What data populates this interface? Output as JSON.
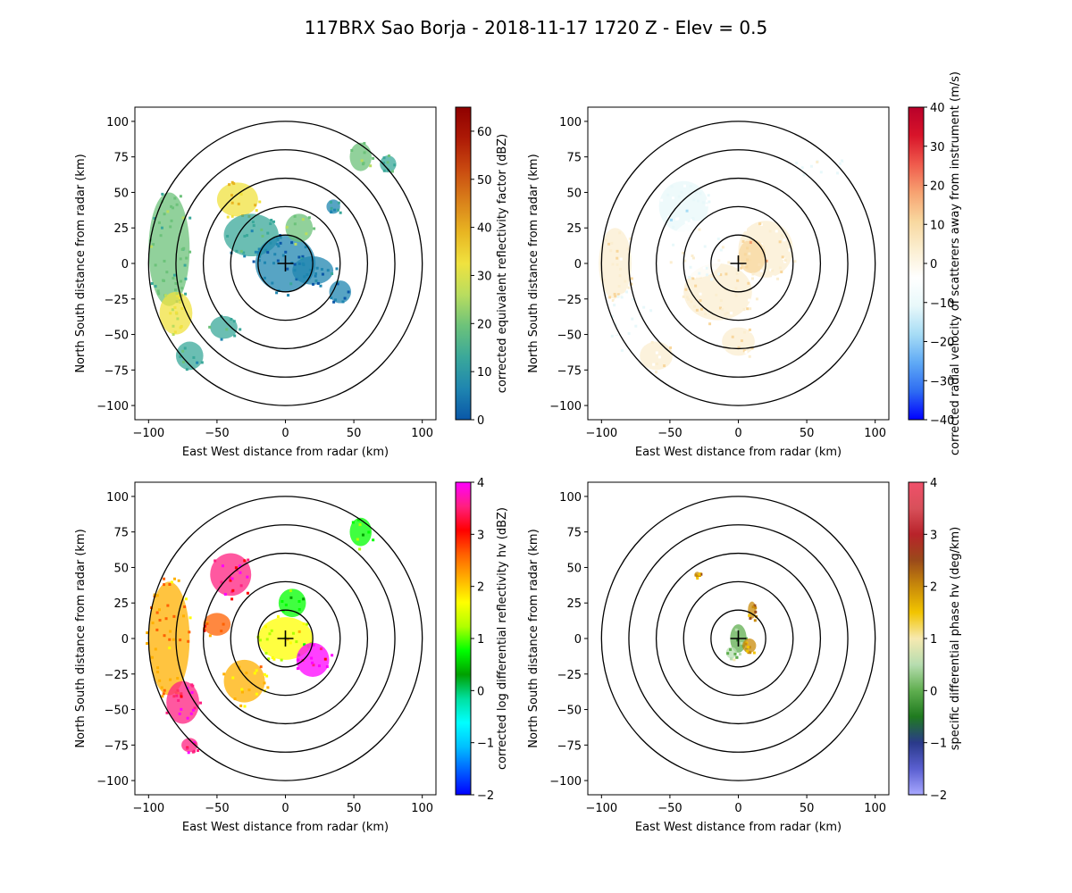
{
  "figure": {
    "title": "117BRX Sao Borja - 2018-11-17 1720 Z -  Elev = 0.5"
  },
  "chart_data": [
    {
      "type": "heatmap",
      "field": "reflectivity",
      "xlabel": "East West distance from radar (km)",
      "ylabel": "North South distance from radar (km)",
      "xlim": [
        -110,
        110
      ],
      "ylim": [
        -110,
        110
      ],
      "xticks": [
        -100,
        -50,
        0,
        50,
        100
      ],
      "yticks": [
        -100,
        -75,
        -50,
        -25,
        0,
        25,
        50,
        75,
        100
      ],
      "range_rings_km": [
        20,
        40,
        60,
        80,
        100
      ],
      "colorbar": {
        "label": "corrected equivalent reflectivity factor (dBZ)",
        "min": 0,
        "max": 65,
        "ticks": [
          0,
          10,
          20,
          30,
          40,
          50,
          60
        ],
        "colors": [
          "#0a57a8",
          "#1f86b0",
          "#3aa89a",
          "#6cc27a",
          "#b9dd5f",
          "#f0e23f",
          "#e8b522",
          "#d9801a",
          "#c94a10",
          "#ad1a06",
          "#8f0000"
        ]
      },
      "echoes": [
        {
          "x": -85,
          "y": 10,
          "rx": 15,
          "ry": 40,
          "value": 18
        },
        {
          "x": -80,
          "y": -35,
          "rx": 12,
          "ry": 15,
          "value": 30
        },
        {
          "x": -70,
          "y": -65,
          "rx": 10,
          "ry": 10,
          "value": 15
        },
        {
          "x": -35,
          "y": 45,
          "rx": 15,
          "ry": 12,
          "value": 35
        },
        {
          "x": -25,
          "y": 20,
          "rx": 20,
          "ry": 15,
          "value": 12
        },
        {
          "x": 0,
          "y": 0,
          "rx": 22,
          "ry": 20,
          "value": 5
        },
        {
          "x": 10,
          "y": 25,
          "rx": 10,
          "ry": 10,
          "value": 22
        },
        {
          "x": 20,
          "y": -5,
          "rx": 15,
          "ry": 10,
          "value": 8
        },
        {
          "x": 40,
          "y": -20,
          "rx": 8,
          "ry": 8,
          "value": 5
        },
        {
          "x": 55,
          "y": 75,
          "rx": 8,
          "ry": 10,
          "value": 20
        },
        {
          "x": 75,
          "y": 70,
          "rx": 6,
          "ry": 6,
          "value": 15
        },
        {
          "x": -45,
          "y": -45,
          "rx": 10,
          "ry": 8,
          "value": 12
        },
        {
          "x": 35,
          "y": 40,
          "rx": 5,
          "ry": 5,
          "value": 8
        }
      ]
    },
    {
      "type": "heatmap",
      "field": "velocity",
      "xlabel": "East West distance from radar (km)",
      "ylabel": "North South distance from radar (km)",
      "xlim": [
        -110,
        110
      ],
      "ylim": [
        -110,
        110
      ],
      "xticks": [
        -100,
        -50,
        0,
        50,
        100
      ],
      "yticks": [
        -100,
        -75,
        -50,
        -25,
        0,
        25,
        50,
        75,
        100
      ],
      "range_rings_km": [
        20,
        40,
        60,
        80,
        100
      ],
      "colorbar": {
        "label": "corrected radial velocity of scatterers away from instrument (m/s)",
        "min": -40,
        "max": 40,
        "ticks": [
          -40,
          -30,
          -20,
          -10,
          0,
          10,
          20,
          30,
          40
        ],
        "colors": [
          "#0000ff",
          "#2e6cf2",
          "#5fa9f5",
          "#a6dcf5",
          "#e8f8fa",
          "#ffffff",
          "#fbeed0",
          "#f8d79e",
          "#f7a271",
          "#ef5a4c",
          "#d8142a",
          "#b8002a"
        ]
      },
      "echoes": [
        {
          "x": -90,
          "y": 0,
          "rx": 12,
          "ry": 25,
          "value": 4
        },
        {
          "x": -80,
          "y": -40,
          "rx": 15,
          "ry": 20,
          "value": -7
        },
        {
          "x": -60,
          "y": -65,
          "rx": 12,
          "ry": 10,
          "value": 3
        },
        {
          "x": -40,
          "y": 40,
          "rx": 18,
          "ry": 18,
          "value": -8
        },
        {
          "x": -15,
          "y": -20,
          "rx": 25,
          "ry": 20,
          "value": 5
        },
        {
          "x": 20,
          "y": 10,
          "rx": 20,
          "ry": 20,
          "value": 4
        },
        {
          "x": -30,
          "y": 10,
          "rx": 20,
          "ry": 20,
          "value": -5
        },
        {
          "x": 55,
          "y": 70,
          "rx": 20,
          "ry": 12,
          "value": -6
        },
        {
          "x": 0,
          "y": -55,
          "rx": 12,
          "ry": 10,
          "value": 4
        },
        {
          "x": 10,
          "y": 5,
          "rx": 10,
          "ry": 12,
          "value": 8
        }
      ]
    },
    {
      "type": "heatmap",
      "field": "differential_reflectivity",
      "xlabel": "East West distance from radar (km)",
      "ylabel": "North South distance from radar (km)",
      "xlim": [
        -110,
        110
      ],
      "ylim": [
        -110,
        110
      ],
      "xticks": [
        -100,
        -50,
        0,
        50,
        100
      ],
      "yticks": [
        -100,
        -75,
        -50,
        -25,
        0,
        25,
        50,
        75,
        100
      ],
      "range_rings_km": [
        20,
        40,
        60,
        80,
        100
      ],
      "colorbar": {
        "label": "corrected log differential reflectivity hv (dBZ)",
        "min": -2,
        "max": 4,
        "ticks": [
          -2,
          -1,
          0,
          1,
          2,
          3,
          4
        ],
        "colors": [
          "#0000ff",
          "#0060ff",
          "#00c0ff",
          "#00ffff",
          "#00e0a0",
          "#00a000",
          "#00ff00",
          "#b0ff00",
          "#ffff00",
          "#ffb000",
          "#ff6000",
          "#ff0000",
          "#ff2080",
          "#ff00ff"
        ]
      },
      "echoes": [
        {
          "x": -85,
          "y": 0,
          "rx": 15,
          "ry": 40,
          "value": 2.3
        },
        {
          "x": -75,
          "y": -45,
          "rx": 12,
          "ry": 15,
          "value": 3.7
        },
        {
          "x": -40,
          "y": 45,
          "rx": 15,
          "ry": 15,
          "value": 3.6
        },
        {
          "x": -30,
          "y": -30,
          "rx": 15,
          "ry": 15,
          "value": 2.0
        },
        {
          "x": 0,
          "y": 0,
          "rx": 20,
          "ry": 15,
          "value": 1.5
        },
        {
          "x": 20,
          "y": -15,
          "rx": 12,
          "ry": 12,
          "value": 3.8
        },
        {
          "x": 5,
          "y": 25,
          "rx": 10,
          "ry": 10,
          "value": 0.8
        },
        {
          "x": 55,
          "y": 75,
          "rx": 8,
          "ry": 10,
          "value": 0.9
        },
        {
          "x": -50,
          "y": 10,
          "rx": 10,
          "ry": 8,
          "value": 2.5
        },
        {
          "x": -70,
          "y": -75,
          "rx": 6,
          "ry": 5,
          "value": 3.5
        }
      ]
    },
    {
      "type": "heatmap",
      "field": "specific_differential_phase",
      "xlabel": "East West distance from radar (km)",
      "ylabel": "North South distance from radar (km)",
      "xlim": [
        -110,
        110
      ],
      "ylim": [
        -110,
        110
      ],
      "xticks": [
        -100,
        -50,
        0,
        50,
        100
      ],
      "yticks": [
        -100,
        -75,
        -50,
        -25,
        0,
        25,
        50,
        75,
        100
      ],
      "range_rings_km": [
        20,
        40,
        60,
        80,
        100
      ],
      "colorbar": {
        "label": "specific differential phase hv (deg/km)",
        "min": -2,
        "max": 4,
        "ticks": [
          -2,
          -1,
          0,
          1,
          2,
          3,
          4
        ],
        "colors": [
          "#a8a8ff",
          "#5a5fd0",
          "#2a3a8a",
          "#1f7a1f",
          "#5fae4f",
          "#b7ddb0",
          "#f6e9b0",
          "#f2c400",
          "#c98b0a",
          "#9a4a1a",
          "#b8232a",
          "#d8505a",
          "#f0506a"
        ]
      },
      "echoes": [
        {
          "x": 0,
          "y": 0,
          "rx": 6,
          "ry": 10,
          "value": 0.1
        },
        {
          "x": 8,
          "y": -5,
          "rx": 5,
          "ry": 5,
          "value": 2.0
        },
        {
          "x": 10,
          "y": 20,
          "rx": 3,
          "ry": 6,
          "value": 2.2
        },
        {
          "x": -30,
          "y": 45,
          "rx": 2,
          "ry": 2,
          "value": 1.8
        },
        {
          "x": -5,
          "y": -10,
          "rx": 4,
          "ry": 4,
          "value": 0.3
        }
      ]
    }
  ]
}
